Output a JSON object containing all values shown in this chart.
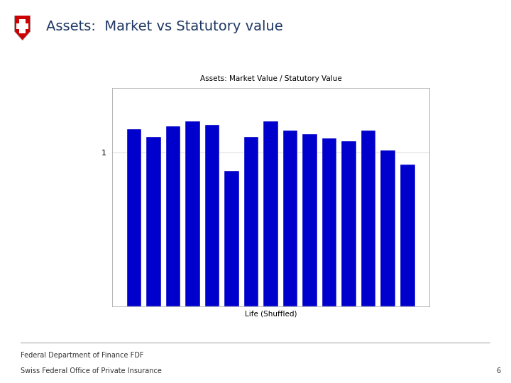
{
  "slide_title": "Assets:  Market vs Statutory value",
  "chart_title": "Assets: Market Value / Statutory Value",
  "xlabel": "Life (Shuffled)",
  "ylabel": "",
  "bar_values": [
    1.15,
    1.1,
    1.17,
    1.2,
    1.18,
    0.88,
    1.1,
    1.2,
    1.14,
    1.12,
    1.09,
    1.07,
    1.14,
    1.01,
    0.92
  ],
  "bar_color": "#0000cc",
  "ytick_label": "1",
  "ytick_value": 1.0,
  "footer_line1": "Federal Department of Finance FDF",
  "footer_line2": "Swiss Federal Office of Private Insurance",
  "page_number": "6",
  "background_color": "#ffffff",
  "slide_title_color": "#1f3864",
  "chart_title_fontsize": 7.5,
  "slide_title_fontsize": 14,
  "footer_fontsize": 7,
  "axis_label_fontsize": 7.5,
  "ytick_fontsize": 8,
  "shield_color": "#cc0000"
}
